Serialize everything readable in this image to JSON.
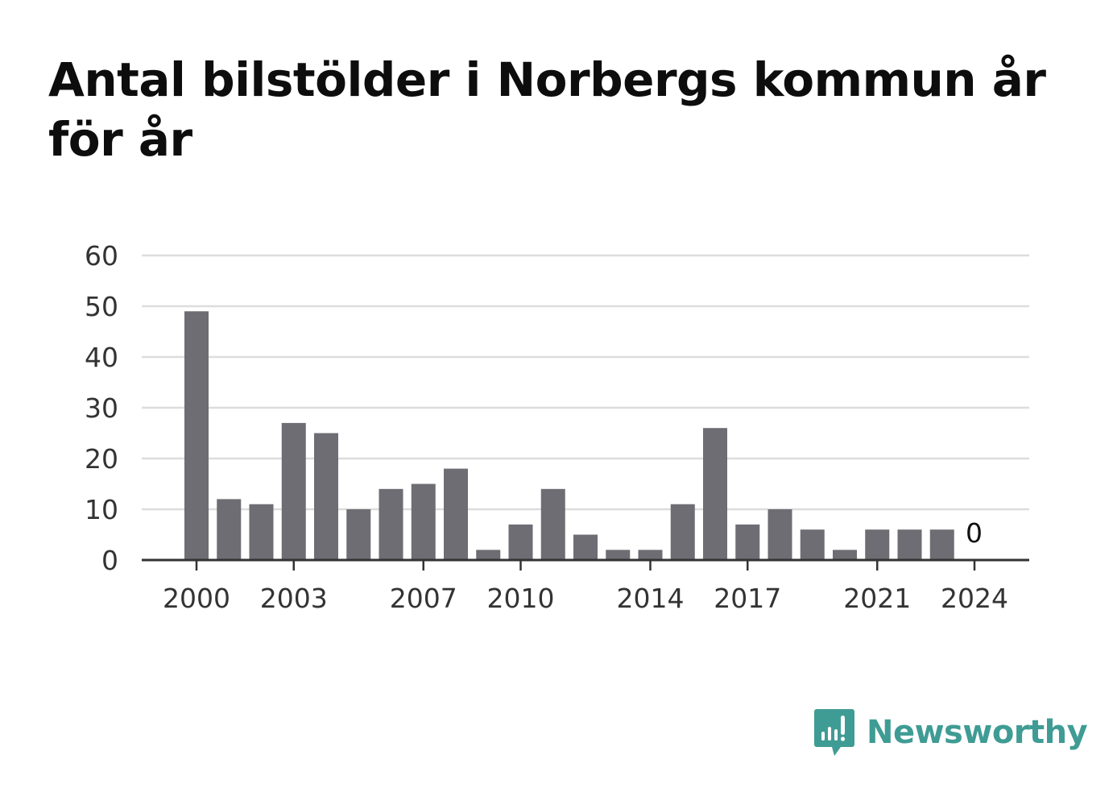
{
  "title": "Antal bilstölder i Norbergs kommun år för år",
  "brand": {
    "name": "Newsworthy",
    "color": "#3f9c94",
    "icon": "bar-chart-speech-bubble-icon"
  },
  "colors": {
    "bar": "#6e6d73",
    "grid": "#dddddd",
    "axis": "#333333"
  },
  "chart_data": {
    "type": "bar",
    "title": "Antal bilstölder i Norbergs kommun år för år",
    "xlabel": "",
    "ylabel": "",
    "categories": [
      "2000",
      "2001",
      "2002",
      "2003",
      "2004",
      "2005",
      "2006",
      "2007",
      "2008",
      "2009",
      "2010",
      "2011",
      "2012",
      "2013",
      "2014",
      "2015",
      "2016",
      "2017",
      "2018",
      "2019",
      "2020",
      "2021",
      "2022",
      "2023",
      "2024"
    ],
    "values": [
      49,
      12,
      11,
      27,
      25,
      10,
      14,
      15,
      18,
      2,
      7,
      14,
      5,
      2,
      2,
      11,
      26,
      7,
      10,
      6,
      2,
      6,
      6,
      6,
      0
    ],
    "x_tick_labels": [
      "2000",
      "2003",
      "2007",
      "2010",
      "2014",
      "2017",
      "2021",
      "2024"
    ],
    "y_ticks": [
      0,
      10,
      20,
      30,
      40,
      50,
      60
    ],
    "ylim": [
      0,
      60
    ],
    "annotations": [
      {
        "category": "2024",
        "text": "0"
      }
    ],
    "grid": true,
    "legend": "none"
  }
}
